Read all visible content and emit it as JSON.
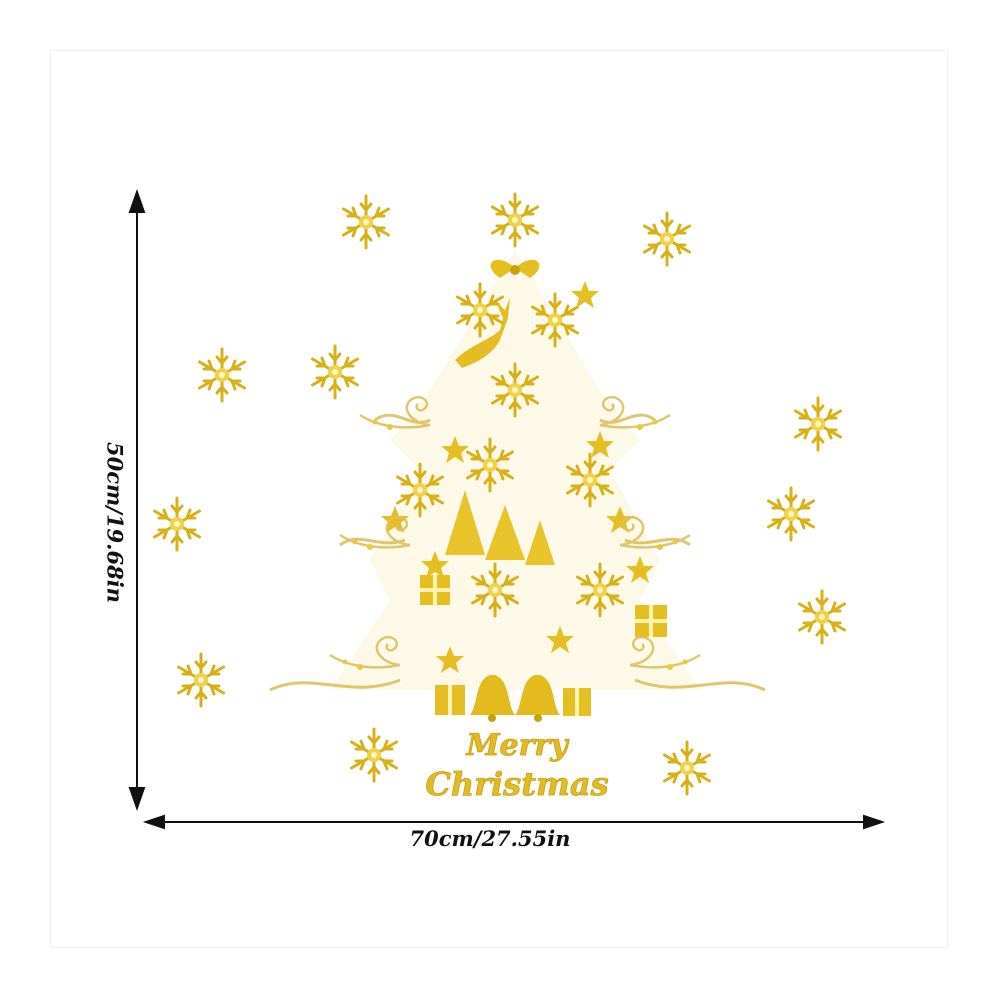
{
  "dimensions": {
    "width_label": "70cm/27.55in",
    "height_label": "50cm/19.68in"
  },
  "greeting": {
    "line1": "Merry",
    "line2": "Christmas"
  },
  "colors": {
    "gold": "#e8c42a",
    "gold_dark": "#c9a10f",
    "gold_light": "#f3dd6e",
    "arrow": "#111111"
  }
}
